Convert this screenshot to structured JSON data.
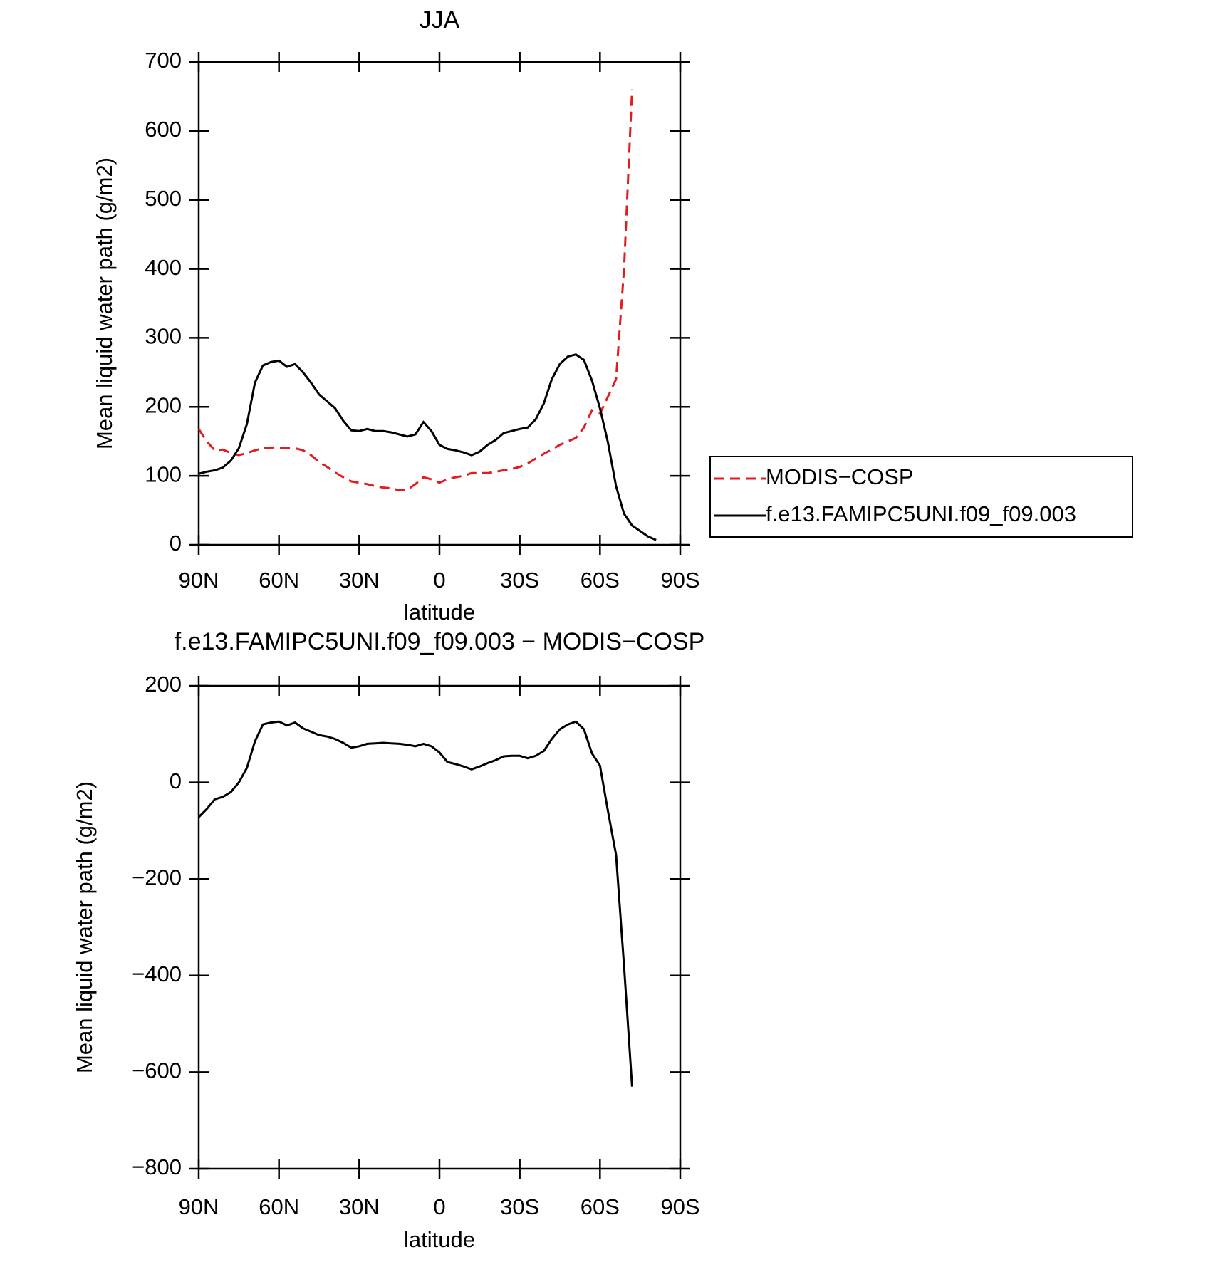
{
  "chart_data": [
    {
      "type": "line",
      "title": "JJA",
      "x_label": "latitude",
      "y_label": "Mean liquid water path (g/m2)",
      "x": [
        90,
        87,
        84,
        81,
        78,
        75,
        72,
        69,
        66,
        63,
        60,
        57,
        54,
        51,
        48,
        45,
        42,
        39,
        36,
        33,
        30,
        27,
        24,
        21,
        18,
        15,
        12,
        9,
        6,
        3,
        0,
        -3,
        -6,
        -9,
        -12,
        -15,
        -18,
        -21,
        -24,
        -27,
        -30,
        -33,
        -36,
        -39,
        -42,
        -45,
        -48,
        -51,
        -54,
        -57,
        -60,
        -63,
        -66,
        -69,
        -72,
        -75,
        -78,
        -81
      ],
      "xlim": [
        90,
        -90
      ],
      "xticks": [
        {
          "value": 90,
          "label": "90N"
        },
        {
          "value": 60,
          "label": "60N"
        },
        {
          "value": 30,
          "label": "30N"
        },
        0,
        {
          "value": -30,
          "label": "30S"
        },
        {
          "value": -60,
          "label": "60S"
        },
        {
          "value": -90,
          "label": "90S"
        }
      ],
      "ylim": [
        0,
        700
      ],
      "yticks": [
        0,
        100,
        200,
        300,
        400,
        500,
        600,
        700
      ],
      "legend": "right",
      "series": [
        {
          "name": "MODIS−COSP",
          "color": "#e41a1c",
          "linestyle": "dashed",
          "values": [
            168,
            150,
            137,
            138,
            133,
            130,
            133,
            137,
            140,
            141,
            141,
            140,
            140,
            137,
            130,
            120,
            113,
            105,
            98,
            92,
            90,
            88,
            85,
            83,
            82,
            79,
            80,
            88,
            98,
            95,
            90,
            95,
            98,
            100,
            104,
            104,
            104,
            106,
            108,
            110,
            113,
            118,
            125,
            132,
            138,
            145,
            150,
            155,
            170,
            195,
            190,
            215,
            240,
            400,
            660,
            null,
            null,
            null
          ]
        },
        {
          "name": "f.e13.FAMIPC5UNI.f09_f09.003",
          "color": "#000000",
          "linestyle": "solid",
          "values": [
            103,
            106,
            108,
            112,
            122,
            140,
            175,
            235,
            260,
            265,
            267,
            258,
            262,
            250,
            235,
            218,
            208,
            198,
            180,
            166,
            165,
            168,
            165,
            165,
            163,
            160,
            157,
            160,
            178,
            165,
            145,
            139,
            137,
            134,
            130,
            135,
            145,
            152,
            162,
            165,
            168,
            170,
            182,
            205,
            240,
            262,
            273,
            276,
            268,
            238,
            198,
            148,
            85,
            45,
            28,
            20,
            12,
            7
          ]
        }
      ]
    },
    {
      "type": "line",
      "title": "f.e13.FAMIPC5UNI.f09_f09.003 − MODIS−COSP",
      "x_label": "latitude",
      "y_label": "Mean liquid water path (g/m2)",
      "x": [
        90,
        87,
        84,
        81,
        78,
        75,
        72,
        69,
        66,
        63,
        60,
        57,
        54,
        51,
        48,
        45,
        42,
        39,
        36,
        33,
        30,
        27,
        24,
        21,
        18,
        15,
        12,
        9,
        6,
        3,
        0,
        -3,
        -6,
        -9,
        -12,
        -15,
        -18,
        -21,
        -24,
        -27,
        -30,
        -33,
        -36,
        -39,
        -42,
        -45,
        -48,
        -51,
        -54,
        -57,
        -60,
        -63,
        -66,
        -69,
        -72
      ],
      "xlim": [
        90,
        -90
      ],
      "xticks": [
        {
          "value": 90,
          "label": "90N"
        },
        {
          "value": 60,
          "label": "60N"
        },
        {
          "value": 30,
          "label": "30N"
        },
        0,
        {
          "value": -30,
          "label": "30S"
        },
        {
          "value": -60,
          "label": "60S"
        },
        {
          "value": -90,
          "label": "90S"
        }
      ],
      "ylim": [
        -800,
        200
      ],
      "yticks": [
        {
          "value": -800,
          "label": "−800"
        },
        {
          "value": -600,
          "label": "−600"
        },
        {
          "value": -400,
          "label": "−400"
        },
        {
          "value": -200,
          "label": "−200"
        },
        0,
        200
      ],
      "series": [
        {
          "color": "#000000",
          "linestyle": "solid",
          "values": [
            -72,
            -55,
            -35,
            -30,
            -20,
            0,
            30,
            85,
            120,
            124,
            126,
            118,
            124,
            112,
            105,
            98,
            95,
            90,
            82,
            72,
            75,
            80,
            81,
            82,
            81,
            80,
            78,
            75,
            80,
            75,
            62,
            42,
            38,
            33,
            27,
            33,
            40,
            46,
            54,
            55,
            55,
            50,
            55,
            65,
            90,
            110,
            120,
            126,
            110,
            60,
            35,
            -60,
            -150,
            -380,
            -630
          ]
        }
      ]
    }
  ]
}
